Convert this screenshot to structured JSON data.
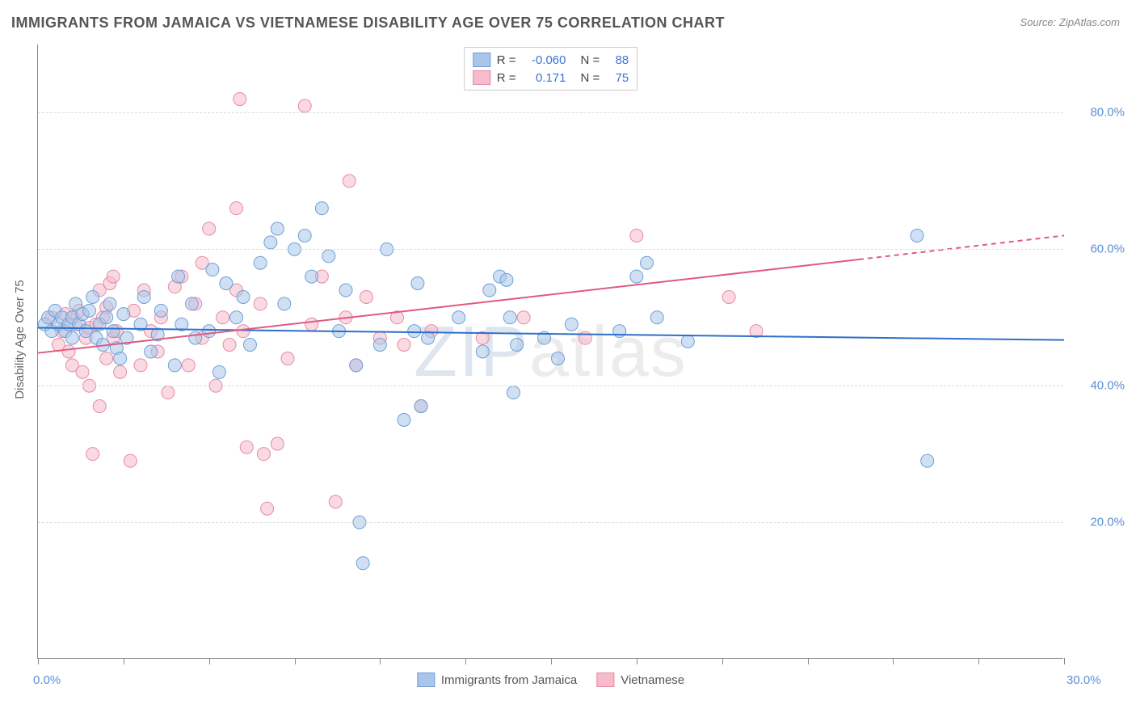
{
  "title": "IMMIGRANTS FROM JAMAICA VS VIETNAMESE DISABILITY AGE OVER 75 CORRELATION CHART",
  "source_prefix": "Source: ",
  "source_name": "ZipAtlas.com",
  "ylabel": "Disability Age Over 75",
  "watermark": {
    "first": "ZIP",
    "rest": "atlas"
  },
  "chart": {
    "type": "scatter",
    "background_color": "#ffffff",
    "grid_color": "#dddddd",
    "axis_color": "#888888",
    "xlim": [
      0,
      30
    ],
    "ylim": [
      0,
      90
    ],
    "xticks": [
      0,
      2.5,
      5,
      7.5,
      10,
      12.5,
      15,
      17.5,
      20,
      22.5,
      25,
      27.5,
      30
    ],
    "x_label_min": "0.0%",
    "x_label_max": "30.0%",
    "y_gridlines": [
      20,
      40,
      60,
      80
    ],
    "y_gridline_labels": [
      "20.0%",
      "40.0%",
      "60.0%",
      "80.0%"
    ],
    "tick_label_color": "#5b8fd6",
    "marker_radius": 8,
    "marker_opacity": 0.55,
    "line_width": 2,
    "series": [
      {
        "id": "jamaica",
        "label": "Immigrants from Jamaica",
        "fill_color": "#a9c6ea",
        "stroke_color": "#6f9fd8",
        "line_color": "#2f6fc9",
        "R": "-0.060",
        "N": "88",
        "trend": {
          "x1": 0,
          "y1": 48.5,
          "x2": 30,
          "y2": 46.7
        },
        "points": [
          [
            0.2,
            49
          ],
          [
            0.3,
            50
          ],
          [
            0.4,
            48
          ],
          [
            0.5,
            51
          ],
          [
            0.6,
            49
          ],
          [
            0.7,
            50
          ],
          [
            0.8,
            48
          ],
          [
            0.9,
            49
          ],
          [
            1.0,
            50
          ],
          [
            1.0,
            47
          ],
          [
            1.1,
            52
          ],
          [
            1.2,
            49
          ],
          [
            1.3,
            50.5
          ],
          [
            1.4,
            48
          ],
          [
            1.5,
            51
          ],
          [
            1.6,
            53
          ],
          [
            1.7,
            47
          ],
          [
            1.8,
            49
          ],
          [
            1.9,
            46
          ],
          [
            2.0,
            50
          ],
          [
            2.1,
            52
          ],
          [
            2.2,
            48
          ],
          [
            2.3,
            45.5
          ],
          [
            2.4,
            44
          ],
          [
            2.5,
            50.5
          ],
          [
            2.6,
            47
          ],
          [
            3.0,
            49
          ],
          [
            3.1,
            53
          ],
          [
            3.3,
            45
          ],
          [
            3.5,
            47.5
          ],
          [
            3.6,
            51
          ],
          [
            4.0,
            43
          ],
          [
            4.1,
            56
          ],
          [
            4.2,
            49
          ],
          [
            4.5,
            52
          ],
          [
            4.6,
            47
          ],
          [
            5.0,
            48
          ],
          [
            5.1,
            57
          ],
          [
            5.3,
            42
          ],
          [
            5.5,
            55
          ],
          [
            5.8,
            50
          ],
          [
            6.0,
            53
          ],
          [
            6.2,
            46
          ],
          [
            6.5,
            58
          ],
          [
            6.8,
            61
          ],
          [
            7.0,
            63
          ],
          [
            7.2,
            52
          ],
          [
            7.5,
            60
          ],
          [
            7.8,
            62
          ],
          [
            8.0,
            56
          ],
          [
            8.3,
            66
          ],
          [
            8.5,
            59
          ],
          [
            8.8,
            48
          ],
          [
            9.0,
            54
          ],
          [
            9.3,
            43
          ],
          [
            9.4,
            20
          ],
          [
            9.5,
            14
          ],
          [
            10.0,
            46
          ],
          [
            10.2,
            60
          ],
          [
            10.7,
            35
          ],
          [
            11.0,
            48
          ],
          [
            11.1,
            55
          ],
          [
            11.2,
            37
          ],
          [
            11.4,
            47
          ],
          [
            12.3,
            50
          ],
          [
            13.0,
            45
          ],
          [
            13.2,
            54
          ],
          [
            13.5,
            56
          ],
          [
            13.7,
            55.5
          ],
          [
            13.8,
            50
          ],
          [
            13.9,
            39
          ],
          [
            14.0,
            46
          ],
          [
            14.8,
            47
          ],
          [
            15.2,
            44
          ],
          [
            15.6,
            49
          ],
          [
            17.0,
            48
          ],
          [
            17.5,
            56
          ],
          [
            17.8,
            58
          ],
          [
            18.1,
            50
          ],
          [
            19.0,
            46.5
          ],
          [
            25.7,
            62
          ],
          [
            26.0,
            29
          ]
        ]
      },
      {
        "id": "vietnamese",
        "label": "Vietnamese",
        "fill_color": "#f6bccb",
        "stroke_color": "#e88aa4",
        "line_color": "#e05a80",
        "R": "0.171",
        "N": "75",
        "trend": {
          "x1": 0,
          "y1": 44.8,
          "x2": 24,
          "y2": 58.5
        },
        "trend_extend": {
          "x1": 24,
          "y1": 58.5,
          "x2": 30,
          "y2": 62
        },
        "points": [
          [
            0.4,
            50
          ],
          [
            0.6,
            46
          ],
          [
            0.7,
            48
          ],
          [
            0.8,
            50.5
          ],
          [
            0.9,
            45
          ],
          [
            1.0,
            50
          ],
          [
            1.0,
            43
          ],
          [
            1.1,
            49
          ],
          [
            1.2,
            51
          ],
          [
            1.3,
            42
          ],
          [
            1.4,
            47
          ],
          [
            1.5,
            48.5
          ],
          [
            1.5,
            40
          ],
          [
            1.6,
            30
          ],
          [
            1.7,
            49
          ],
          [
            1.8,
            54
          ],
          [
            1.8,
            37
          ],
          [
            1.9,
            50
          ],
          [
            2.0,
            44
          ],
          [
            2.0,
            51.5
          ],
          [
            2.1,
            55
          ],
          [
            2.2,
            47
          ],
          [
            2.2,
            56
          ],
          [
            2.3,
            48
          ],
          [
            2.4,
            42
          ],
          [
            2.7,
            29
          ],
          [
            2.8,
            51
          ],
          [
            3.0,
            43
          ],
          [
            3.1,
            54
          ],
          [
            3.3,
            48
          ],
          [
            3.5,
            45
          ],
          [
            3.6,
            50
          ],
          [
            3.8,
            39
          ],
          [
            4.0,
            54.5
          ],
          [
            4.2,
            56
          ],
          [
            4.4,
            43
          ],
          [
            4.6,
            52
          ],
          [
            4.8,
            47
          ],
          [
            4.8,
            58
          ],
          [
            5.0,
            63
          ],
          [
            5.2,
            40
          ],
          [
            5.4,
            50
          ],
          [
            5.6,
            46
          ],
          [
            5.8,
            54
          ],
          [
            5.8,
            66
          ],
          [
            5.9,
            82
          ],
          [
            6.0,
            48
          ],
          [
            6.1,
            31
          ],
          [
            6.5,
            52
          ],
          [
            6.6,
            30
          ],
          [
            6.7,
            22
          ],
          [
            7.0,
            31.5
          ],
          [
            7.3,
            44
          ],
          [
            7.8,
            81
          ],
          [
            8.0,
            49
          ],
          [
            8.3,
            56
          ],
          [
            8.7,
            23
          ],
          [
            9.0,
            50
          ],
          [
            9.1,
            70
          ],
          [
            9.3,
            43
          ],
          [
            9.6,
            53
          ],
          [
            10.0,
            47
          ],
          [
            10.5,
            50
          ],
          [
            10.7,
            46
          ],
          [
            11.2,
            37
          ],
          [
            11.5,
            48
          ],
          [
            13.0,
            47
          ],
          [
            14.2,
            50
          ],
          [
            16.0,
            47
          ],
          [
            17.5,
            62
          ],
          [
            20.2,
            53
          ],
          [
            21.0,
            48
          ]
        ]
      }
    ],
    "legend_top": {
      "R_label": "R =",
      "N_label": "N ="
    }
  }
}
